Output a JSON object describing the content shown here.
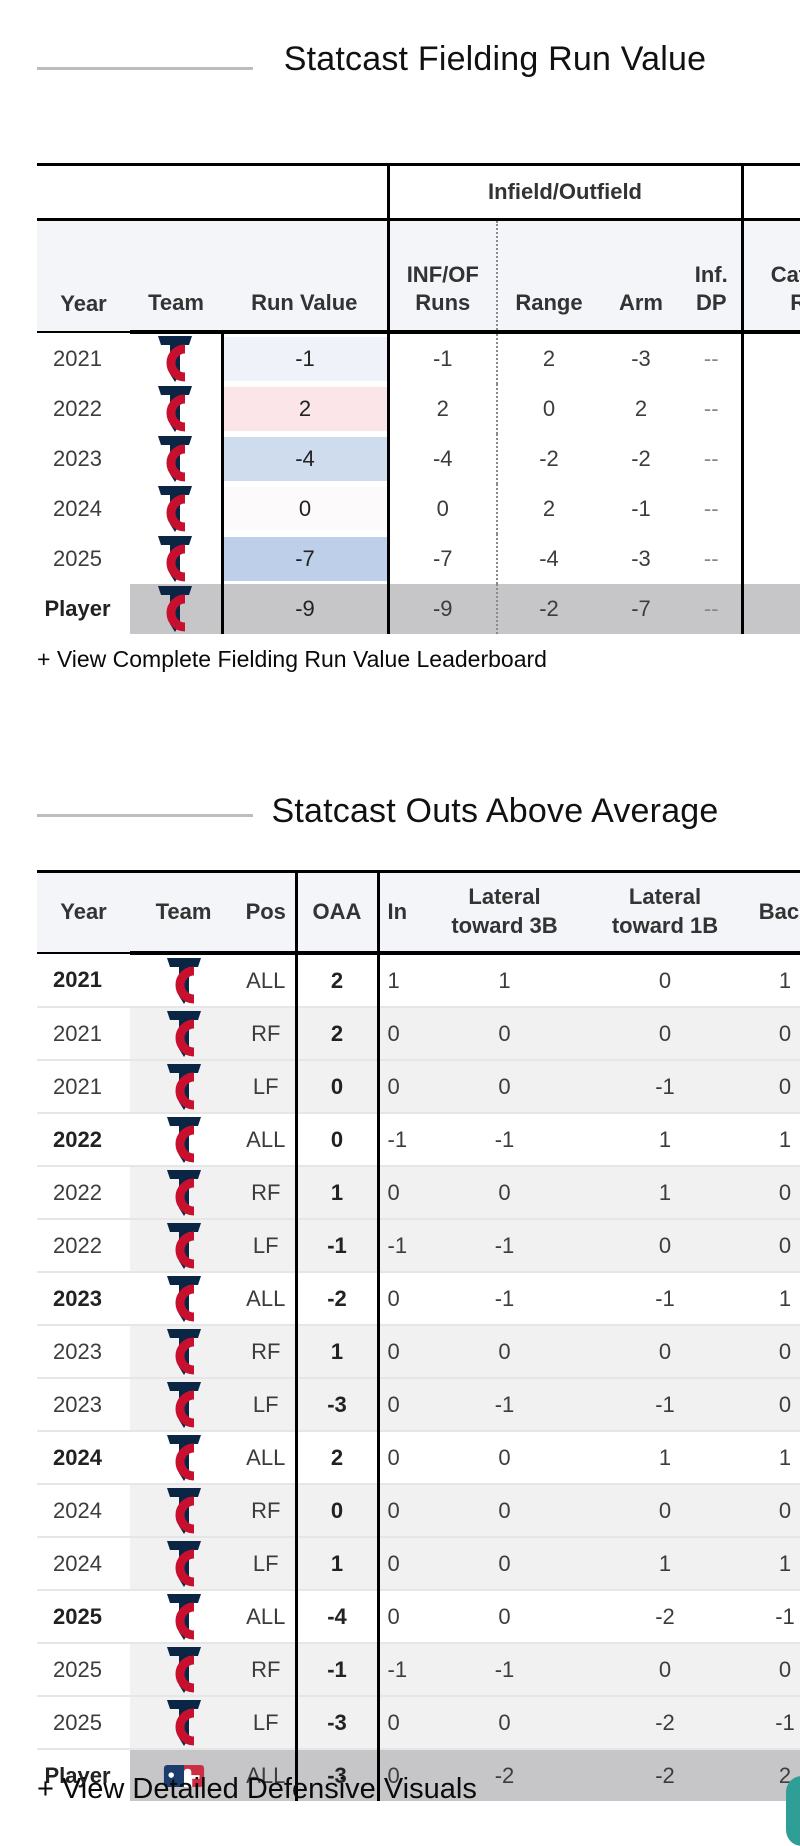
{
  "section_fielding": {
    "title": "Statcast Fielding Run Value",
    "leaderboard_link": "+ View Complete Fielding Run Value Leaderboard",
    "table": {
      "group_header": "Infield/Outfield",
      "columns": {
        "year": "Year",
        "team": "Team",
        "run_value": "Run Value",
        "inf_of_runs": "INF/OF\nRuns",
        "range": "Range",
        "arm": "Arm",
        "inf_dp": "Inf.\nDP",
        "catching_runs": "Catching\nRuns"
      },
      "rows": [
        {
          "year": "2021",
          "team_icon": "twins-logo",
          "run_value": "-1",
          "run_value_color": "#f0f2fa",
          "inf_of_runs": "-1",
          "range": "2",
          "arm": "-3",
          "inf_dp": "--",
          "catching_runs": "",
          "is_player": false
        },
        {
          "year": "2022",
          "team_icon": "twins-logo",
          "run_value": "2",
          "run_value_color": "#fbe5e8",
          "inf_of_runs": "2",
          "range": "0",
          "arm": "2",
          "inf_dp": "--",
          "catching_runs": "",
          "is_player": false
        },
        {
          "year": "2023",
          "team_icon": "twins-logo",
          "run_value": "-4",
          "run_value_color": "#cfdcee",
          "inf_of_runs": "-4",
          "range": "-2",
          "arm": "-2",
          "inf_dp": "--",
          "catching_runs": "",
          "is_player": false
        },
        {
          "year": "2024",
          "team_icon": "twins-logo",
          "run_value": "0",
          "run_value_color": "#fdfafb",
          "inf_of_runs": "0",
          "range": "2",
          "arm": "-1",
          "inf_dp": "--",
          "catching_runs": "",
          "is_player": false
        },
        {
          "year": "2025",
          "team_icon": "twins-logo",
          "run_value": "-7",
          "run_value_color": "#bdcfe9",
          "inf_of_runs": "-7",
          "range": "-4",
          "arm": "-3",
          "inf_dp": "--",
          "catching_runs": "",
          "is_player": false
        },
        {
          "year": "Player",
          "team_icon": "twins-logo",
          "run_value": "-9",
          "run_value_color": "",
          "inf_of_runs": "-9",
          "range": "-2",
          "arm": "-7",
          "inf_dp": "--",
          "catching_runs": "",
          "is_player": true
        }
      ]
    }
  },
  "section_oaa": {
    "title": "Statcast Outs Above Average",
    "visuals_link": "+ View Detailed Defensive Visuals",
    "table": {
      "columns": {
        "year": "Year",
        "team": "Team",
        "pos": "Pos",
        "oaa": "OAA",
        "in": "In",
        "lat_3b": "Lateral\ntoward 3B",
        "lat_1b": "Lateral\ntoward 1B",
        "back": "Back"
      },
      "rows": [
        {
          "year": "2021",
          "team_icon": "twins-logo",
          "pos": "ALL",
          "oaa": "2",
          "in": "1",
          "lat_3b": "1",
          "lat_1b": "0",
          "back": "1",
          "bold_year": true,
          "shaded": false,
          "is_player": false
        },
        {
          "year": "2021",
          "team_icon": "twins-logo",
          "pos": "RF",
          "oaa": "2",
          "in": "0",
          "lat_3b": "0",
          "lat_1b": "0",
          "back": "0",
          "bold_year": false,
          "shaded": true,
          "is_player": false
        },
        {
          "year": "2021",
          "team_icon": "twins-logo",
          "pos": "LF",
          "oaa": "0",
          "in": "0",
          "lat_3b": "0",
          "lat_1b": "-1",
          "back": "0",
          "bold_year": false,
          "shaded": true,
          "is_player": false
        },
        {
          "year": "2022",
          "team_icon": "twins-logo",
          "pos": "ALL",
          "oaa": "0",
          "in": "-1",
          "lat_3b": "-1",
          "lat_1b": "1",
          "back": "1",
          "bold_year": true,
          "shaded": false,
          "is_player": false
        },
        {
          "year": "2022",
          "team_icon": "twins-logo",
          "pos": "RF",
          "oaa": "1",
          "in": "0",
          "lat_3b": "0",
          "lat_1b": "1",
          "back": "0",
          "bold_year": false,
          "shaded": true,
          "is_player": false
        },
        {
          "year": "2022",
          "team_icon": "twins-logo",
          "pos": "LF",
          "oaa": "-1",
          "in": "-1",
          "lat_3b": "-1",
          "lat_1b": "0",
          "back": "0",
          "bold_year": false,
          "shaded": true,
          "is_player": false
        },
        {
          "year": "2023",
          "team_icon": "twins-logo",
          "pos": "ALL",
          "oaa": "-2",
          "in": "0",
          "lat_3b": "-1",
          "lat_1b": "-1",
          "back": "1",
          "bold_year": true,
          "shaded": false,
          "is_player": false
        },
        {
          "year": "2023",
          "team_icon": "twins-logo",
          "pos": "RF",
          "oaa": "1",
          "in": "0",
          "lat_3b": "0",
          "lat_1b": "0",
          "back": "0",
          "bold_year": false,
          "shaded": true,
          "is_player": false
        },
        {
          "year": "2023",
          "team_icon": "twins-logo",
          "pos": "LF",
          "oaa": "-3",
          "in": "0",
          "lat_3b": "-1",
          "lat_1b": "-1",
          "back": "0",
          "bold_year": false,
          "shaded": true,
          "is_player": false
        },
        {
          "year": "2024",
          "team_icon": "twins-logo",
          "pos": "ALL",
          "oaa": "2",
          "in": "0",
          "lat_3b": "0",
          "lat_1b": "1",
          "back": "1",
          "bold_year": true,
          "shaded": false,
          "is_player": false
        },
        {
          "year": "2024",
          "team_icon": "twins-logo",
          "pos": "RF",
          "oaa": "0",
          "in": "0",
          "lat_3b": "0",
          "lat_1b": "0",
          "back": "0",
          "bold_year": false,
          "shaded": true,
          "is_player": false
        },
        {
          "year": "2024",
          "team_icon": "twins-logo",
          "pos": "LF",
          "oaa": "1",
          "in": "0",
          "lat_3b": "0",
          "lat_1b": "1",
          "back": "1",
          "bold_year": false,
          "shaded": true,
          "is_player": false
        },
        {
          "year": "2025",
          "team_icon": "twins-logo",
          "pos": "ALL",
          "oaa": "-4",
          "in": "0",
          "lat_3b": "0",
          "lat_1b": "-2",
          "back": "-1",
          "bold_year": true,
          "shaded": false,
          "is_player": false
        },
        {
          "year": "2025",
          "team_icon": "twins-logo",
          "pos": "RF",
          "oaa": "-1",
          "in": "-1",
          "lat_3b": "-1",
          "lat_1b": "0",
          "back": "0",
          "bold_year": false,
          "shaded": true,
          "is_player": false
        },
        {
          "year": "2025",
          "team_icon": "twins-logo",
          "pos": "LF",
          "oaa": "-3",
          "in": "0",
          "lat_3b": "0",
          "lat_1b": "-2",
          "back": "-1",
          "bold_year": false,
          "shaded": true,
          "is_player": false
        },
        {
          "year": "Player",
          "team_icon": "mlb-logo",
          "pos": "ALL",
          "oaa": "-3",
          "in": "0",
          "lat_3b": "-2",
          "lat_1b": "-2",
          "back": "2",
          "bold_year": true,
          "shaded": false,
          "is_player": true
        }
      ]
    }
  },
  "colors": {
    "twins_navy": "#0b2545",
    "twins_red": "#c8102e",
    "header_bg": "#f4f5f8",
    "stripe_gray": "#f1f1f2",
    "player_row_gray": "#c6c6c8",
    "fab_teal": "#2f9e97"
  }
}
